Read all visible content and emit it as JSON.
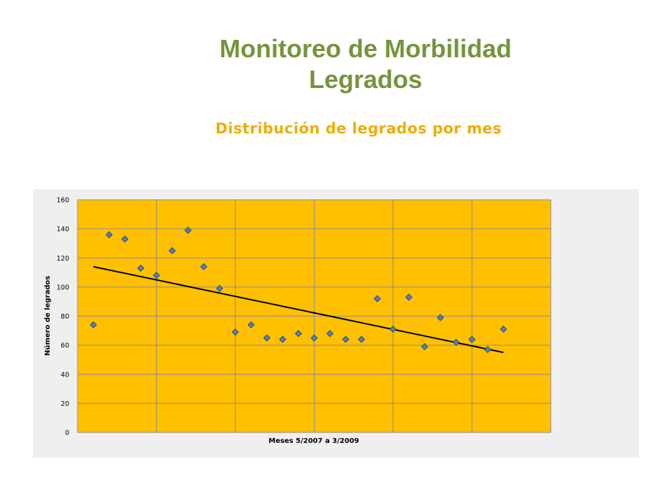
{
  "slide": {
    "title_line1": "Monitoreo de Morbilidad",
    "title_line2": "Legrados",
    "subtitle": "Distribución de legrados por mes"
  },
  "colors": {
    "title": "#77933c",
    "subtitle": "#f0ac00",
    "chart_area": "#efefef",
    "plot_area": "#ffc000",
    "marker": "#4f81bd",
    "trendline": "#000000"
  },
  "chart_data": {
    "type": "scatter",
    "title": "",
    "xlabel": "Meses 5/2007 a 3/2009",
    "ylabel": "Número de legrados",
    "xlim": [
      0,
      30
    ],
    "ylim": [
      0,
      160
    ],
    "y_ticks": [
      0,
      20,
      40,
      60,
      80,
      100,
      120,
      140,
      160
    ],
    "x_gridlines": [
      5,
      10,
      15,
      20,
      25
    ],
    "grid": true,
    "legend": "none",
    "series": [
      {
        "marker": "diamond",
        "x": [
          1,
          2,
          3,
          4,
          5,
          6,
          7,
          8,
          9,
          10,
          11,
          12,
          13,
          14,
          15,
          16,
          17,
          18,
          19,
          20,
          21,
          22,
          23,
          24,
          25,
          26,
          27
        ],
        "values": [
          74,
          136,
          133,
          113,
          108,
          125,
          139,
          114,
          99,
          69,
          74,
          65,
          64,
          68,
          65,
          68,
          64,
          64,
          92,
          71,
          93,
          59,
          79,
          62,
          64,
          57,
          71
        ]
      }
    ],
    "trendline": {
      "type": "linear",
      "x": [
        1,
        27
      ],
      "y": [
        114,
        55
      ]
    }
  }
}
